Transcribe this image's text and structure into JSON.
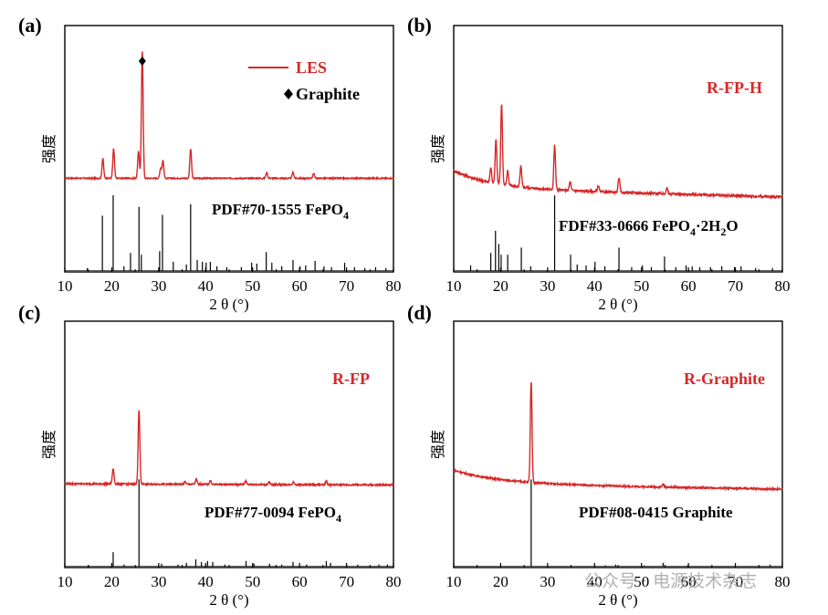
{
  "chart_data": [
    {
      "type": "line",
      "panel": "(a)",
      "xlabel": "2 θ (°)",
      "ylabel": "强度",
      "xlim": [
        10,
        80
      ],
      "xticks": [
        10,
        20,
        30,
        40,
        50,
        60,
        70,
        80
      ],
      "series": [
        {
          "name": "LES",
          "color": "#d62728",
          "baseline": 0.1,
          "noise": 0.006,
          "slope": 0,
          "peaks": [
            {
              "x": 18.1,
              "h": 0.2
            },
            {
              "x": 20.4,
              "h": 0.3
            },
            {
              "x": 25.7,
              "h": 0.28
            },
            {
              "x": 26.5,
              "h": 1.3
            },
            {
              "x": 30.4,
              "h": 0.1
            },
            {
              "x": 30.9,
              "h": 0.18
            },
            {
              "x": 36.8,
              "h": 0.3
            },
            {
              "x": 53.0,
              "h": 0.06
            },
            {
              "x": 58.6,
              "h": 0.06
            },
            {
              "x": 63.0,
              "h": 0.05
            }
          ]
        }
      ],
      "reference": {
        "label": "PDF#70-1555 FePO",
        "label_sub": "4",
        "label_sub2": "",
        "label_tail": "",
        "lines": [
          {
            "x": 14.8,
            "h": 0.03
          },
          {
            "x": 18.0,
            "h": 0.62
          },
          {
            "x": 20.3,
            "h": 0.85
          },
          {
            "x": 22.6,
            "h": 0.05
          },
          {
            "x": 24.0,
            "h": 0.2
          },
          {
            "x": 25.8,
            "h": 0.72
          },
          {
            "x": 26.3,
            "h": 0.18
          },
          {
            "x": 30.2,
            "h": 0.22
          },
          {
            "x": 30.8,
            "h": 0.63
          },
          {
            "x": 33.1,
            "h": 0.1
          },
          {
            "x": 35.9,
            "h": 0.07
          },
          {
            "x": 36.8,
            "h": 0.75
          },
          {
            "x": 38.2,
            "h": 0.12
          },
          {
            "x": 39.3,
            "h": 0.1
          },
          {
            "x": 40.1,
            "h": 0.09
          },
          {
            "x": 41.0,
            "h": 0.1
          },
          {
            "x": 42.4,
            "h": 0.05
          },
          {
            "x": 44.5,
            "h": 0.04
          },
          {
            "x": 47.6,
            "h": 0.04
          },
          {
            "x": 49.8,
            "h": 0.09
          },
          {
            "x": 50.9,
            "h": 0.08
          },
          {
            "x": 52.9,
            "h": 0.21
          },
          {
            "x": 54.1,
            "h": 0.09
          },
          {
            "x": 56.2,
            "h": 0.05
          },
          {
            "x": 58.6,
            "h": 0.12
          },
          {
            "x": 60.1,
            "h": 0.05
          },
          {
            "x": 61.3,
            "h": 0.06
          },
          {
            "x": 63.3,
            "h": 0.11
          },
          {
            "x": 65.2,
            "h": 0.05
          },
          {
            "x": 66.8,
            "h": 0.04
          },
          {
            "x": 69.6,
            "h": 0.09
          },
          {
            "x": 71.7,
            "h": 0.04
          },
          {
            "x": 73.9,
            "h": 0.03
          },
          {
            "x": 76.2,
            "h": 0.04
          },
          {
            "x": 78.4,
            "h": 0.03
          }
        ]
      },
      "legend": [
        {
          "label": "LES",
          "kind": "line",
          "color": "#d62728"
        },
        {
          "label": "Graphite",
          "kind": "diamond",
          "color": "#000000"
        }
      ],
      "marker": {
        "symbol": "diamond",
        "x": 26.5,
        "label": "Graphite"
      }
    },
    {
      "type": "line",
      "panel": "(b)",
      "xlabel": "2 θ (°)",
      "ylabel": "强度",
      "xlim": [
        10,
        80
      ],
      "xticks": [
        10,
        20,
        30,
        40,
        50,
        60,
        70,
        80
      ],
      "series": [
        {
          "name": "R-FP-H",
          "color": "#d62728",
          "baseline": 0.3,
          "noise": 0.008,
          "slope": -0.06,
          "peaks": [
            {
              "x": 17.9,
              "h": 0.1
            },
            {
              "x": 19.0,
              "h": 0.3
            },
            {
              "x": 20.2,
              "h": 0.55
            },
            {
              "x": 21.5,
              "h": 0.1
            },
            {
              "x": 24.3,
              "h": 0.14
            },
            {
              "x": 31.5,
              "h": 0.3
            },
            {
              "x": 34.8,
              "h": 0.06
            },
            {
              "x": 40.8,
              "h": 0.04
            },
            {
              "x": 45.2,
              "h": 0.1
            },
            {
              "x": 55.4,
              "h": 0.04
            }
          ]
        }
      ],
      "reference": {
        "label": "FDF#33-0666 FePO",
        "label_sub": "4",
        "label_sub2": "2",
        "label_tail": "O",
        "lines": [
          {
            "x": 13.6,
            "h": 0.06
          },
          {
            "x": 17.9,
            "h": 0.2
          },
          {
            "x": 18.9,
            "h": 0.45
          },
          {
            "x": 19.6,
            "h": 0.3
          },
          {
            "x": 20.1,
            "h": 0.18
          },
          {
            "x": 21.5,
            "h": 0.18
          },
          {
            "x": 24.4,
            "h": 0.26
          },
          {
            "x": 26.4,
            "h": 0.05
          },
          {
            "x": 31.5,
            "h": 0.85
          },
          {
            "x": 34.9,
            "h": 0.18
          },
          {
            "x": 36.3,
            "h": 0.07
          },
          {
            "x": 38.2,
            "h": 0.06
          },
          {
            "x": 40.1,
            "h": 0.1
          },
          {
            "x": 42.2,
            "h": 0.05
          },
          {
            "x": 45.2,
            "h": 0.26
          },
          {
            "x": 47.9,
            "h": 0.04
          },
          {
            "x": 50.2,
            "h": 0.06
          },
          {
            "x": 52.1,
            "h": 0.04
          },
          {
            "x": 54.9,
            "h": 0.16
          },
          {
            "x": 57.3,
            "h": 0.04
          },
          {
            "x": 59.5,
            "h": 0.06
          },
          {
            "x": 60.8,
            "h": 0.05
          },
          {
            "x": 62.4,
            "h": 0.04
          },
          {
            "x": 64.7,
            "h": 0.04
          },
          {
            "x": 67.1,
            "h": 0.05
          },
          {
            "x": 69.8,
            "h": 0.04
          },
          {
            "x": 71.2,
            "h": 0.05
          },
          {
            "x": 74.3,
            "h": 0.03
          },
          {
            "x": 77.9,
            "h": 0.03
          }
        ]
      },
      "legend": [],
      "marker": null
    },
    {
      "type": "line",
      "panel": "(c)",
      "xlabel": "2 θ (°)",
      "ylabel": "强度",
      "xlim": [
        10,
        80
      ],
      "xticks": [
        10,
        20,
        30,
        40,
        50,
        60,
        70,
        80
      ],
      "series": [
        {
          "name": "R-FP",
          "color": "#d62728",
          "baseline": 0.3,
          "noise": 0.006,
          "slope": -0.01,
          "peaks": [
            {
              "x": 20.3,
              "h": 0.12
            },
            {
              "x": 25.8,
              "h": 0.58
            },
            {
              "x": 35.6,
              "h": 0.02
            },
            {
              "x": 38.0,
              "h": 0.04
            },
            {
              "x": 41.0,
              "h": 0.03
            },
            {
              "x": 48.5,
              "h": 0.03
            },
            {
              "x": 53.5,
              "h": 0.02
            },
            {
              "x": 58.7,
              "h": 0.02
            },
            {
              "x": 65.7,
              "h": 0.03
            }
          ]
        }
      ],
      "reference": {
        "label": "PDF#77-0094 FePO",
        "label_sub": "4",
        "label_sub2": "",
        "label_tail": "",
        "lines": [
          {
            "x": 15.1,
            "h": 0.01
          },
          {
            "x": 20.3,
            "h": 0.16
          },
          {
            "x": 22.6,
            "h": 0.02
          },
          {
            "x": 25.8,
            "h": 0.98
          },
          {
            "x": 30.6,
            "h": 0.03
          },
          {
            "x": 34.1,
            "h": 0.02
          },
          {
            "x": 35.9,
            "h": 0.04
          },
          {
            "x": 37.9,
            "h": 0.08
          },
          {
            "x": 39.1,
            "h": 0.05
          },
          {
            "x": 40.4,
            "h": 0.06
          },
          {
            "x": 41.5,
            "h": 0.05
          },
          {
            "x": 44.1,
            "h": 0.02
          },
          {
            "x": 48.6,
            "h": 0.06
          },
          {
            "x": 50.3,
            "h": 0.03
          },
          {
            "x": 53.6,
            "h": 0.03
          },
          {
            "x": 56.2,
            "h": 0.02
          },
          {
            "x": 58.6,
            "h": 0.05
          },
          {
            "x": 61.5,
            "h": 0.02
          },
          {
            "x": 65.7,
            "h": 0.06
          },
          {
            "x": 66.6,
            "h": 0.04
          },
          {
            "x": 70.0,
            "h": 0.02
          },
          {
            "x": 72.4,
            "h": 0.02
          },
          {
            "x": 76.9,
            "h": 0.02
          },
          {
            "x": 78.7,
            "h": 0.02
          }
        ]
      },
      "legend": [],
      "marker": null
    },
    {
      "type": "line",
      "panel": "(d)",
      "xlabel": "2 θ (°)",
      "ylabel": "强度",
      "xlim": [
        10,
        80
      ],
      "xticks": [
        10,
        20,
        30,
        40,
        50,
        60,
        70,
        80
      ],
      "series": [
        {
          "name": "R-Graphite",
          "color": "#d62728",
          "baseline": 0.3,
          "noise": 0.006,
          "slope": -0.04,
          "peaks": [
            {
              "x": 26.5,
              "h": 0.75
            },
            {
              "x": 54.6,
              "h": 0.02
            }
          ]
        }
      ],
      "reference": {
        "label": "PDF#08-0415 Graphite",
        "label_sub": "",
        "label_sub2": "",
        "label_tail": "",
        "lines": [
          {
            "x": 26.5,
            "h": 0.98
          },
          {
            "x": 42.3,
            "h": 0.01
          },
          {
            "x": 44.5,
            "h": 0.02
          },
          {
            "x": 50.6,
            "h": 0.01
          },
          {
            "x": 54.6,
            "h": 0.04
          },
          {
            "x": 59.8,
            "h": 0.01
          },
          {
            "x": 77.4,
            "h": 0.02
          }
        ]
      },
      "legend": [],
      "marker": null
    }
  ],
  "watermark": "公众号 · 电源技术杂志"
}
